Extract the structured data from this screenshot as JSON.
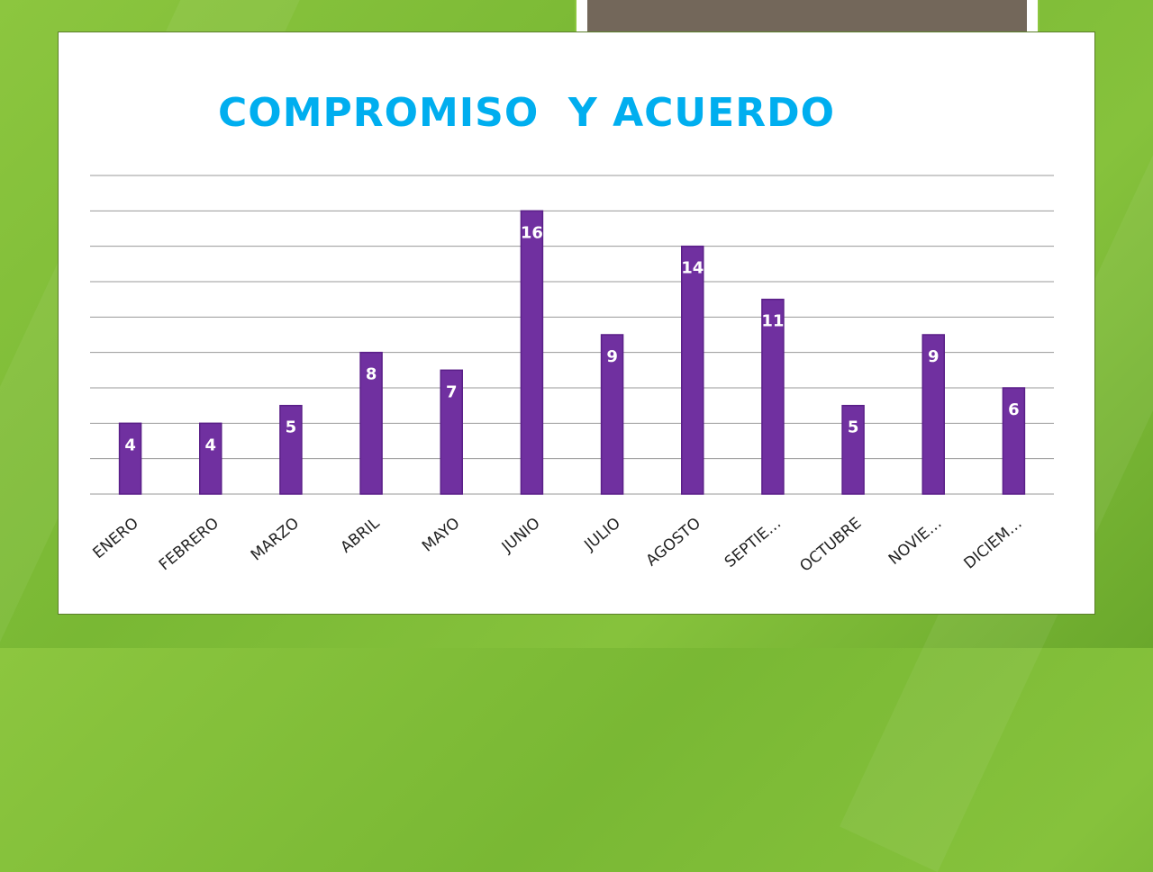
{
  "title": "COMPROMISO  Y ACUERDO",
  "colors": {
    "bar": "#7030a0",
    "bar_edge": "#5a1f88",
    "title": "#00aeef",
    "gridline": "#9a9a9a",
    "background_green": "#8cc63f",
    "tab": "#73675a"
  },
  "chart_data": {
    "type": "bar",
    "categories": [
      "ENERO",
      "FEBRERO",
      "MARZO",
      "ABRIL",
      "MAYO",
      "JUNIO",
      "JULIO",
      "AGOSTO",
      "SEPTIE…",
      "OCTUBRE",
      "NOVIE…",
      "DICIEM…"
    ],
    "values": [
      4,
      4,
      5,
      8,
      7,
      16,
      9,
      14,
      11,
      5,
      9,
      6
    ],
    "xlabel": "",
    "ylabel": "",
    "ylim": [
      0,
      18
    ],
    "grid": true,
    "legend": "none"
  }
}
